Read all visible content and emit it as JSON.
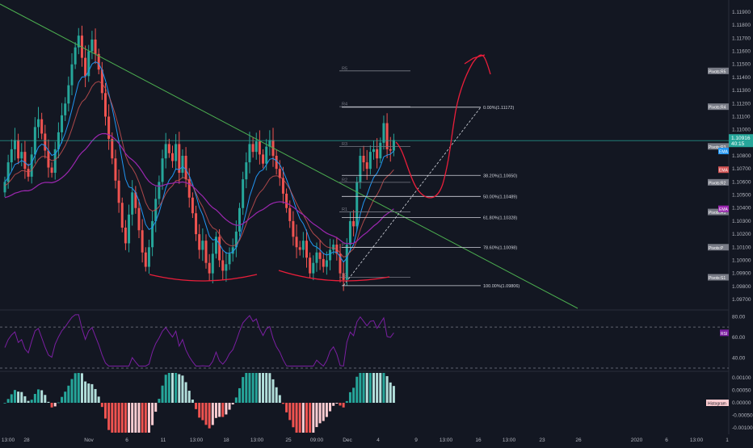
{
  "theme": {
    "background": "#131722",
    "grid": "#1e222d",
    "axis_text": "#b2b5be",
    "bull": "#26a69a",
    "bear": "#ef5350",
    "ema_fast": "#2196f3",
    "ema_mid": "#d35454",
    "ema_slow": "#9c27b0",
    "trendline": "#4caf50",
    "price_line": "#26a69a",
    "projection": "#e91e3a",
    "rsi": "#7b1fa2",
    "macd_pos_strong": "#26a69a",
    "macd_pos_weak": "#b2dfdb",
    "macd_neg_strong": "#ef5350",
    "macd_neg_weak": "#ffcdd2"
  },
  "chart_data": [
    {
      "type": "candlestick",
      "panel": "price",
      "ylim": [
        1.096,
        1.12
      ],
      "y_ticks": [
        "1.11900",
        "1.11800",
        "1.11700",
        "1.11600",
        "1.11500",
        "1.11400",
        "1.11300",
        "1.11200",
        "1.11100",
        "1.11000",
        "1.10900",
        "1.10800",
        "1.10700",
        "1.10600",
        "1.10500",
        "1.10400",
        "1.10300",
        "1.10200",
        "1.10100",
        "1.10000",
        "1.09900",
        "1.09800",
        "1.09700"
      ],
      "x_ticks": [
        "13:00",
        "28",
        "Nov",
        "6",
        "11",
        "13:00",
        "18",
        "13:00",
        "25",
        "09:00",
        "Dec",
        "4",
        "9",
        "13:00",
        "16",
        "13:00",
        "23",
        "26",
        "2020",
        "6",
        "13:00",
        "1"
      ],
      "last_price": {
        "value": "1.10916",
        "countdown": "40:15"
      },
      "pivot_levels": [
        {
          "label": "R5",
          "tag": "Pivots:R5",
          "value": 1.1145
        },
        {
          "label": "R4",
          "tag": "Pivots:R4",
          "value": 1.11176
        },
        {
          "label": "R3",
          "tag": "Pivots:R3",
          "value": 1.10872
        },
        {
          "label": "R2",
          "tag": "Pivots:R2",
          "value": 1.10597
        },
        {
          "label": "R1",
          "tag": "Pivots:R1",
          "value": 1.1037
        },
        {
          "label": "P",
          "tag": "Pivots:P",
          "value": 1.101
        },
        {
          "label": "S1",
          "tag": "Pivots:S1",
          "value": 1.0987
        }
      ],
      "fibonacci": [
        {
          "label": "0.00%(1.11172)",
          "value": 1.11172
        },
        {
          "label": "38.20%(1.10650)",
          "value": 1.1065
        },
        {
          "label": "50.00%(1.10489)",
          "value": 1.10489
        },
        {
          "label": "61.80%(1.10328)",
          "value": 1.10328
        },
        {
          "label": "78.60%(1.10098)",
          "value": 1.10098
        },
        {
          "label": "100.00%(1.09806)",
          "value": 1.09806
        }
      ],
      "ema_tags": [
        "EMA",
        "EMA",
        "EMA"
      ],
      "closes": [
        1.106,
        1.1075,
        1.1085,
        1.1092,
        1.1078,
        1.1083,
        1.107,
        1.1064,
        1.1081,
        1.1102,
        1.1108,
        1.1097,
        1.1084,
        1.1071,
        1.1067,
        1.1085,
        1.1098,
        1.1111,
        1.112,
        1.1134,
        1.115,
        1.1163,
        1.1172,
        1.1155,
        1.1141,
        1.116,
        1.1169,
        1.1158,
        1.1146,
        1.1128,
        1.111,
        1.1093,
        1.1078,
        1.1061,
        1.1044,
        1.1025,
        1.1013,
        1.1035,
        1.1052,
        1.104,
        1.1023,
        1.1006,
        1.0995,
        1.101,
        1.103,
        1.1047,
        1.106,
        1.1078,
        1.1089,
        1.1082,
        1.1076,
        1.1089,
        1.1067,
        1.108,
        1.1062,
        1.1048,
        1.1036,
        1.102,
        1.1008,
        1.1015,
        1.0998,
        1.099,
        1.1005,
        1.1018,
        1.1,
        1.0992,
        1.0997,
        1.1005,
        1.101,
        1.1022,
        1.104,
        1.1062,
        1.1075,
        1.1089,
        1.1083,
        1.1091,
        1.1081,
        1.1074,
        1.1087,
        1.1092,
        1.108,
        1.107,
        1.1063,
        1.1051,
        1.104,
        1.103,
        1.1018,
        1.101,
        1.1008,
        1.1015,
        1.1002,
        1.099,
        1.0998,
        1.1006,
        1.1001,
        1.0995,
        1.1,
        1.1008,
        1.1012,
        1.1005,
        1.099,
        1.0985,
        1.1012,
        1.103,
        1.1026,
        1.106,
        1.108,
        1.1075,
        1.107,
        1.1083,
        1.1085,
        1.1078,
        1.109,
        1.1105,
        1.1085,
        1.1084,
        1.1092
      ],
      "reading_note": ""
    },
    {
      "type": "line",
      "panel": "RSI",
      "ylim": [
        30,
        85
      ],
      "y_ticks": [
        "80.00",
        "60.00",
        "40.00"
      ],
      "tag": "RSI",
      "overbought": 70,
      "oversold": 30
    },
    {
      "type": "histogram",
      "panel": "MACD",
      "ylim": [
        -0.0012,
        0.0012
      ],
      "y_ticks": [
        "0.00100",
        "0.00050",
        "0.00000",
        "-0.00050",
        "-0.00100"
      ],
      "tag": "Histogram"
    }
  ],
  "annotations": {
    "drawn_projection": "red freehand forecast path",
    "neckline_arcs": 2
  }
}
